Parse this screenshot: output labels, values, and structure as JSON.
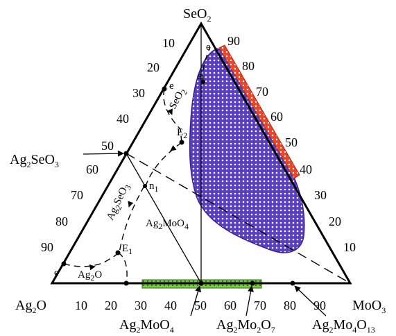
{
  "diagram": {
    "vertex_top": {
      "base": "SeO",
      "sub": "2"
    },
    "vertex_left": {
      "base": "Ag",
      "sub": "2",
      "rest": "O"
    },
    "vertex_right": {
      "base": "MoO",
      "sub": "3"
    },
    "left_edge_ticks": [
      "10",
      "20",
      "30",
      "40",
      "50",
      "60",
      "70",
      "80",
      "90"
    ],
    "right_edge_ticks": [
      "90",
      "80",
      "70",
      "60",
      "50",
      "40",
      "30",
      "20",
      "10"
    ],
    "bottom_ticks": [
      "10",
      "20",
      "30",
      "40",
      "50",
      "60",
      "70",
      "80",
      "90"
    ],
    "compounds": {
      "ag2seo3": {
        "a": "Ag",
        "s1": "2",
        "b": "SeO",
        "s2": "3"
      },
      "ag2moo4_bottom": {
        "a": "Ag",
        "s1": "2",
        "b": "MoO",
        "s2": "4"
      },
      "ag2mo2o7": {
        "a": "Ag",
        "s1": "2",
        "b": "Mo",
        "s2": "2",
        "c": "O",
        "s3": "7"
      },
      "ag2mo4o13": {
        "a": "Ag",
        "s1": "2",
        "b": "Mo",
        "s2": "4",
        "c": "O",
        "s3": "13"
      },
      "ag2moo4_inner": {
        "a": "Ag",
        "s1": "2",
        "b": "MoO",
        "s2": "4"
      },
      "ag2o_inner": {
        "a": "Ag",
        "s1": "2",
        "b": "O"
      }
    },
    "points": {
      "e": "e",
      "E2": {
        "base": "E",
        "sub": "2"
      },
      "E1": {
        "base": "E",
        "sub": "1"
      },
      "n1": {
        "base": "n",
        "sub": "1"
      }
    },
    "curve_labels": {
      "seo2": {
        "base": "SeO",
        "sub": "2"
      },
      "ag2seo3": {
        "a": "Ag",
        "s1": "2",
        "b": "SeO",
        "s2": "3"
      }
    },
    "colors": {
      "region_fill": "#5a3fc0",
      "region_stroke": "#3a1f9a",
      "red_band": "#e8452a",
      "green_band": "#7ac943"
    }
  }
}
